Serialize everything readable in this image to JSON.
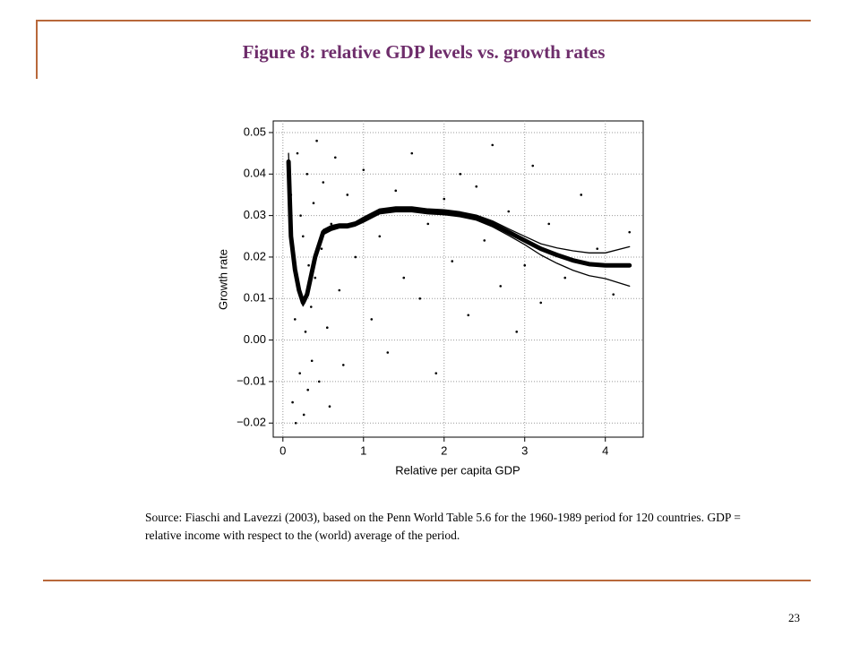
{
  "title": "Figure 8: relative GDP levels vs. growth rates",
  "source": "Source: Fiaschi and Lavezzi (2003), based on the Penn World Table 5.6 for the 1960-1989 period for 120 countries. GDP = relative income with respect to the (world) average of the period.",
  "page_number": "23",
  "chart_data": {
    "type": "scatter",
    "xlabel": "Relative per capita GDP",
    "ylabel": "Growth rate",
    "xlim": [
      -0.12,
      4.47
    ],
    "ylim": [
      -0.0234,
      0.0528
    ],
    "xticks": [
      0,
      1,
      2,
      3,
      4
    ],
    "yticks": [
      {
        "value": -0.02,
        "label": "−0.02"
      },
      {
        "value": -0.01,
        "label": "−0.01"
      },
      {
        "value": 0,
        "label": "0.00"
      },
      0.01,
      0.02,
      0.03,
      0.04,
      0.05
    ],
    "grid": true,
    "points": {
      "color": "#000000",
      "x": [
        0.1,
        0.12,
        0.13,
        0.15,
        0.16,
        0.18,
        0.2,
        0.21,
        0.22,
        0.25,
        0.26,
        0.28,
        0.3,
        0.31,
        0.32,
        0.35,
        0.36,
        0.38,
        0.4,
        0.42,
        0.45,
        0.48,
        0.5,
        0.55,
        0.58,
        0.6,
        0.65,
        0.7,
        0.75,
        0.8,
        0.9,
        1.0,
        1.1,
        1.2,
        1.3,
        1.4,
        1.5,
        1.6,
        1.7,
        1.8,
        1.9,
        2.0,
        2.1,
        2.2,
        2.3,
        2.4,
        2.5,
        2.6,
        2.7,
        2.8,
        2.9,
        3.0,
        3.1,
        3.2,
        3.3,
        3.5,
        3.7,
        3.9,
        4.1,
        4.3
      ],
      "y": [
        0.035,
        -0.015,
        0.02,
        0.005,
        -0.02,
        0.045,
        0.012,
        -0.008,
        0.03,
        0.025,
        -0.018,
        0.002,
        0.04,
        -0.012,
        0.018,
        0.008,
        -0.005,
        0.033,
        0.015,
        0.048,
        -0.01,
        0.022,
        0.038,
        0.003,
        -0.016,
        0.028,
        0.044,
        0.012,
        -0.006,
        0.035,
        0.02,
        0.041,
        0.005,
        0.025,
        -0.003,
        0.036,
        0.015,
        0.045,
        0.01,
        0.028,
        -0.008,
        0.034,
        0.019,
        0.04,
        0.006,
        0.037,
        0.024,
        0.047,
        0.013,
        0.031,
        0.002,
        0.018,
        0.042,
        0.009,
        0.028,
        0.015,
        0.035,
        0.022,
        0.011,
        0.026
      ]
    },
    "x": [
      0.07,
      0.1,
      0.15,
      0.2,
      0.25,
      0.3,
      0.4,
      0.5,
      0.6,
      0.7,
      0.8,
      0.9,
      1.0,
      1.2,
      1.4,
      1.6,
      1.8,
      2.0,
      2.2,
      2.4,
      2.6,
      2.8,
      3.0,
      3.2,
      3.4,
      3.6,
      3.8,
      4.0,
      4.3
    ],
    "series": [
      {
        "color": "#000000",
        "values": [
          0.043,
          0.025,
          0.017,
          0.012,
          0.009,
          0.011,
          0.02,
          0.026,
          0.027,
          0.0275,
          0.0275,
          0.028,
          0.029,
          0.031,
          0.0315,
          0.0315,
          0.031,
          0.0308,
          0.0303,
          0.0295,
          0.028,
          0.026,
          0.024,
          0.022,
          0.0205,
          0.0192,
          0.0183,
          0.018,
          0.018
        ]
      },
      {
        "color": "#000000",
        "values": [
          0.045,
          0.027,
          0.018,
          0.013,
          0.0098,
          0.0118,
          0.0208,
          0.0266,
          0.0276,
          0.028,
          0.028,
          0.0285,
          0.0296,
          0.0316,
          0.0321,
          0.0321,
          0.0316,
          0.0314,
          0.0309,
          0.0301,
          0.0287,
          0.0268,
          0.025,
          0.0232,
          0.0222,
          0.0215,
          0.021,
          0.021,
          0.0225
        ]
      },
      {
        "color": "#000000",
        "values": [
          0.041,
          0.023,
          0.016,
          0.011,
          0.0082,
          0.0102,
          0.0192,
          0.0254,
          0.0264,
          0.027,
          0.027,
          0.0275,
          0.0284,
          0.0304,
          0.0309,
          0.0309,
          0.0304,
          0.0302,
          0.0297,
          0.0289,
          0.0273,
          0.0252,
          0.023,
          0.0205,
          0.0185,
          0.0168,
          0.0155,
          0.0148,
          0.013
        ]
      }
    ]
  }
}
